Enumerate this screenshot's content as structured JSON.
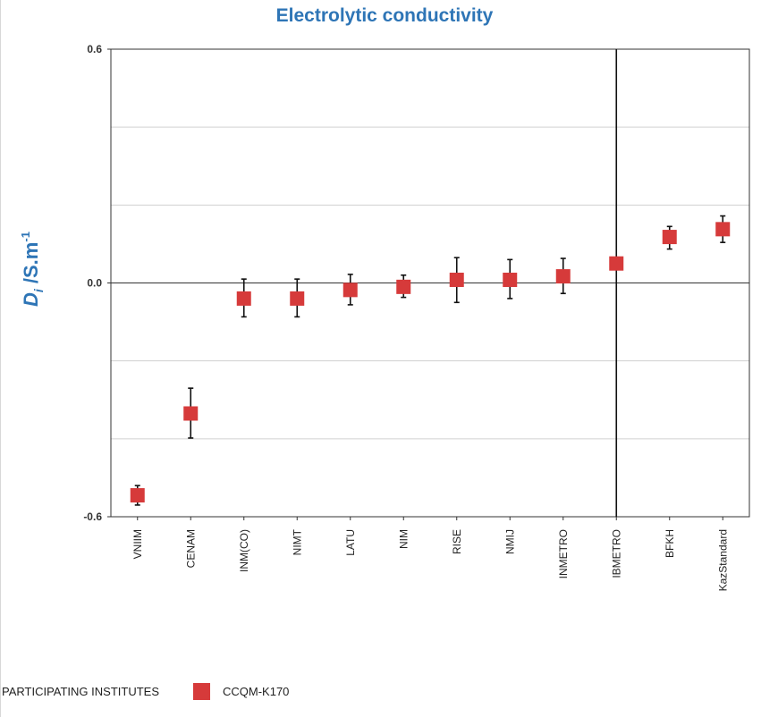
{
  "colors": {
    "title": "#2e75b6",
    "marker": "#d63a3a",
    "axis": "#333333",
    "grid": "#d0d0d0"
  },
  "legend": {
    "title": "PARTICIPATING INSTITUTES",
    "series_label": "CCQM-K170"
  },
  "chart_data": {
    "type": "scatter",
    "title": "Electrolytic conductivity",
    "ylabel_main": "D",
    "ylabel_sub": "i",
    "ylabel_unit": " /S.m",
    "ylabel_exp": "-1",
    "xlabel": "",
    "ylim": [
      -0.6,
      0.6
    ],
    "y_ticks": [
      {
        "value": 0.6,
        "label": "0.6"
      },
      {
        "value": 0.0,
        "label": "0.0"
      },
      {
        "value": -0.6,
        "label": "-0.6"
      }
    ],
    "y_gridlines": [
      0.4,
      0.2,
      -0.2,
      -0.4
    ],
    "reference_line_y": 0.0,
    "reference_line_category": "IBMETRO",
    "grid": true,
    "categories": [
      "VNIIM",
      "CENAM",
      "INM(CO)",
      "NIMT",
      "LATU",
      "NIM",
      "RISE",
      "NMIJ",
      "INMETRO",
      "IBMETRO",
      "BFKH",
      "KazStandard"
    ],
    "series": [
      {
        "name": "CCQM-K170",
        "values": [
          -0.545,
          -0.335,
          -0.04,
          -0.04,
          -0.018,
          -0.01,
          0.008,
          0.008,
          0.017,
          0.05,
          0.118,
          0.138
        ],
        "upper": [
          -0.52,
          -0.27,
          0.01,
          0.01,
          0.022,
          0.02,
          0.065,
          0.06,
          0.063,
          null,
          0.145,
          0.172
        ],
        "lower": [
          -0.57,
          -0.398,
          -0.087,
          -0.087,
          -0.056,
          -0.037,
          -0.05,
          -0.04,
          -0.027,
          null,
          0.087,
          0.104
        ]
      }
    ]
  }
}
